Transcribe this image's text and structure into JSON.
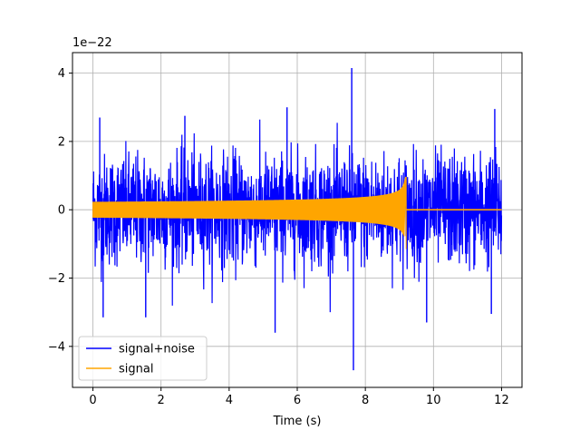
{
  "chart_data": {
    "type": "line",
    "title": "",
    "xlabel": "Time (s)",
    "ylabel": "",
    "y_scale_label": "1e−22",
    "xlim": [
      -0.6,
      12.6
    ],
    "ylim": [
      -5.2,
      4.6
    ],
    "x_ticks": [
      0,
      2,
      4,
      6,
      8,
      10,
      12
    ],
    "x_tick_labels": [
      "0",
      "2",
      "4",
      "6",
      "8",
      "10",
      "12"
    ],
    "y_ticks": [
      -4,
      -2,
      0,
      2,
      4
    ],
    "y_tick_labels": [
      "−4",
      "−2",
      "0",
      "2",
      "4"
    ],
    "grid": true,
    "legend_position": "lower-left",
    "series": [
      {
        "name": "signal+noise",
        "color": "#0000ff",
        "x_range": [
          0,
          12
        ],
        "typical_envelope": 1.3,
        "spikes": [
          {
            "x": 7.6,
            "y": 4.15
          },
          {
            "x": 7.65,
            "y": -4.7
          },
          {
            "x": 5.35,
            "y": -3.6
          },
          {
            "x": 0.2,
            "y": 2.7
          },
          {
            "x": 2.7,
            "y": 2.75
          },
          {
            "x": 5.7,
            "y": 3.0
          },
          {
            "x": 11.8,
            "y": 2.95
          },
          {
            "x": 0.3,
            "y": -3.15
          },
          {
            "x": 1.55,
            "y": -3.15
          },
          {
            "x": 9.8,
            "y": -3.3
          },
          {
            "x": 11.7,
            "y": -3.05
          }
        ]
      },
      {
        "name": "signal",
        "color": "#ffa500",
        "x_range": [
          0,
          12
        ],
        "start_amplitude": 0.22,
        "merger_time": 9.2,
        "merger_peak_positive": 0.95,
        "merger_peak_negative": -1.15,
        "post_merger_value": 0
      }
    ]
  }
}
